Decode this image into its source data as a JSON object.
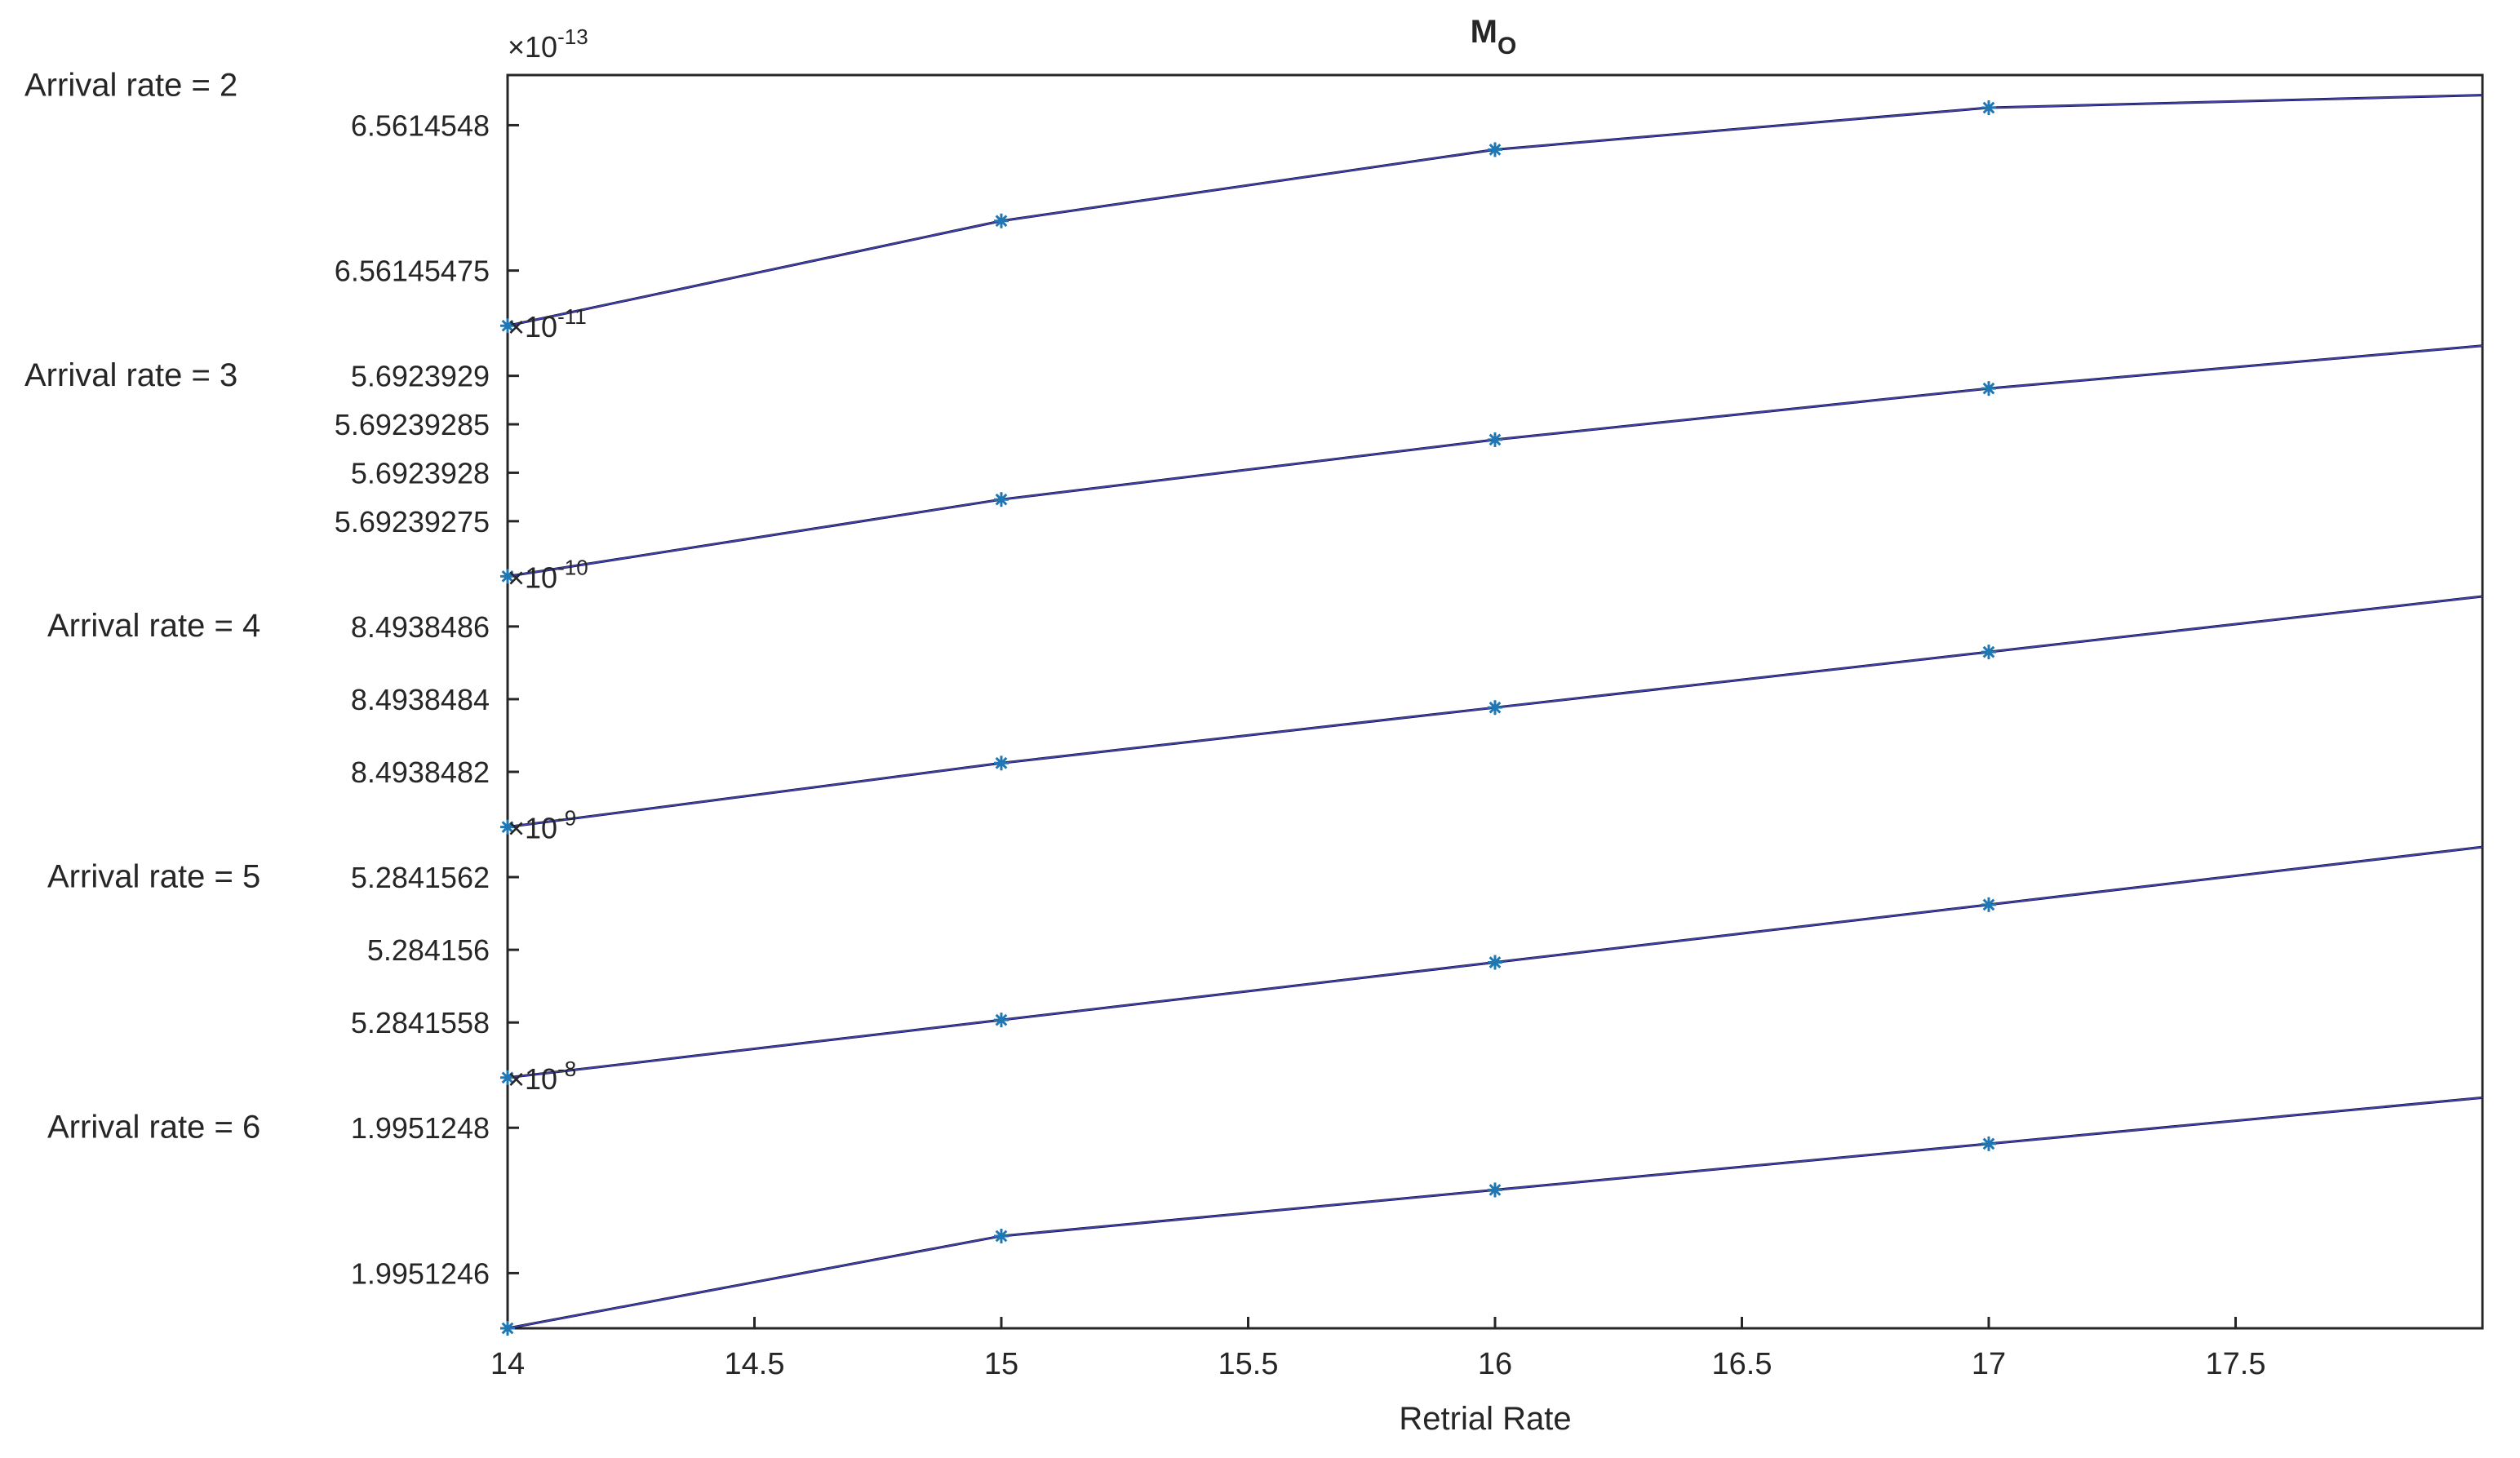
{
  "chart_data": {
    "type": "line",
    "title": "M",
    "title_subscript": "O",
    "xlabel": "Retrial Rate",
    "xlim": [
      14,
      18
    ],
    "xticks": [
      14,
      14.5,
      15,
      15.5,
      16,
      16.5,
      17,
      17.5
    ],
    "x": [
      14,
      15,
      16,
      17,
      18
    ],
    "grid": false,
    "legend": "none",
    "colors": {
      "fit_line": "#000000",
      "data_line": "#4a4ad8",
      "markers": "#1f77b4",
      "axes": "#262626"
    },
    "panels": [
      {
        "name": "Arrival rate = 2",
        "exponent_label": "10",
        "exponent_power": "-13",
        "exponent_prefix": "×",
        "ylim": [
          6.5614543,
          6.56145496
        ],
        "yticks": [
          {
            "value": 6.5614548,
            "label": "6.5614548"
          },
          {
            "value": 6.56145475,
            "label": "6.56145475"
          }
        ],
        "values": [
          6.5614544,
          6.56145465,
          6.56145482,
          6.56145492,
          6.56145495
        ]
      },
      {
        "name": "Arrival rate = 3",
        "exponent_label": "10",
        "exponent_power": "-11",
        "exponent_prefix": "×",
        "ylim": [
          6.5614543,
          6.56145496
        ],
        "yticks": [
          {
            "value": 5.6923929,
            "label": "5.6923929"
          },
          {
            "value": 5.69239285,
            "label": "5.69239285"
          },
          {
            "value": 5.6923928,
            "label": "5.6923928"
          },
          {
            "value": 5.69239275,
            "label": "5.69239275"
          }
        ],
        "values": [
          5.6923927,
          5.69239279,
          5.69239286,
          5.69239292,
          5.69239297
        ]
      },
      {
        "name": "Arrival rate = 4",
        "exponent_label": "10",
        "exponent_power": "-10",
        "exponent_prefix": "×",
        "yticks": [
          {
            "value": 8.4938486,
            "label": "8.4938486"
          },
          {
            "value": 8.4938484,
            "label": "8.4938484"
          },
          {
            "value": 8.4938482,
            "label": "8.4938482"
          }
        ],
        "values": [
          8.493848,
          8.49384823,
          8.49384843,
          8.49384863,
          8.49384883
        ]
      },
      {
        "name": "Arrival rate = 5",
        "exponent_label": "10",
        "exponent_power": "-9",
        "exponent_prefix": "×",
        "yticks": [
          {
            "value": 5.2841562,
            "label": "5.2841562"
          },
          {
            "value": 5.284156,
            "label": "5.284156"
          },
          {
            "value": 5.2841558,
            "label": "5.2841558"
          }
        ],
        "values": [
          5.2841556,
          5.2841558,
          5.284156,
          5.2841562,
          5.2841564
        ]
      },
      {
        "name": "Arrival rate = 6",
        "exponent_label": "10",
        "exponent_power": "-8",
        "exponent_prefix": "×",
        "yticks": [
          {
            "value": 1.9951248,
            "label": "1.9951248"
          },
          {
            "value": 1.9951246,
            "label": "1.9951246"
          }
        ],
        "values": [
          1.99512445,
          1.99512447,
          1.99512448,
          1.99512449,
          1.9951245
        ]
      }
    ]
  }
}
